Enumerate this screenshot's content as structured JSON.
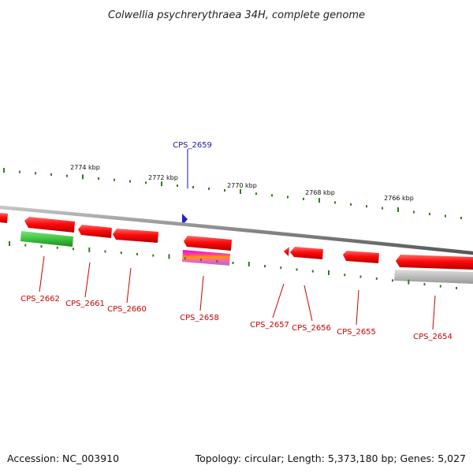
{
  "title": "Colwellia psychrerythraea 34H, complete genome",
  "footer": {
    "accession": "Accession: NC_003910",
    "summary": "Topology: circular; Length: 5,373,180 bp; Genes: 5,027"
  },
  "colors": {
    "forward_gene": "#2222cc",
    "reverse_gene": "#e8000b",
    "rna_feature": "#3ec43e",
    "pseudo_feature": "#bbbbbb",
    "backbone": "#888888",
    "ticks": "#2e7d1e",
    "label_forward": "#1a1aa6",
    "label_reverse": "#cc0000"
  },
  "scale_labels": [
    "2774 kbp",
    "2772 kbp",
    "2770 kbp",
    "2768 kbp",
    "2766 kbp"
  ],
  "genes": [
    {
      "id": "CPS_2659",
      "strand": "forward"
    },
    {
      "id": "CPS_2662",
      "strand": "reverse"
    },
    {
      "id": "CPS_2661",
      "strand": "reverse"
    },
    {
      "id": "CPS_2660",
      "strand": "reverse"
    },
    {
      "id": "CPS_2658",
      "strand": "reverse"
    },
    {
      "id": "CPS_2657",
      "strand": "reverse"
    },
    {
      "id": "CPS_2656",
      "strand": "reverse"
    },
    {
      "id": "CPS_2655",
      "strand": "reverse"
    },
    {
      "id": "CPS_2654",
      "strand": "reverse"
    }
  ]
}
